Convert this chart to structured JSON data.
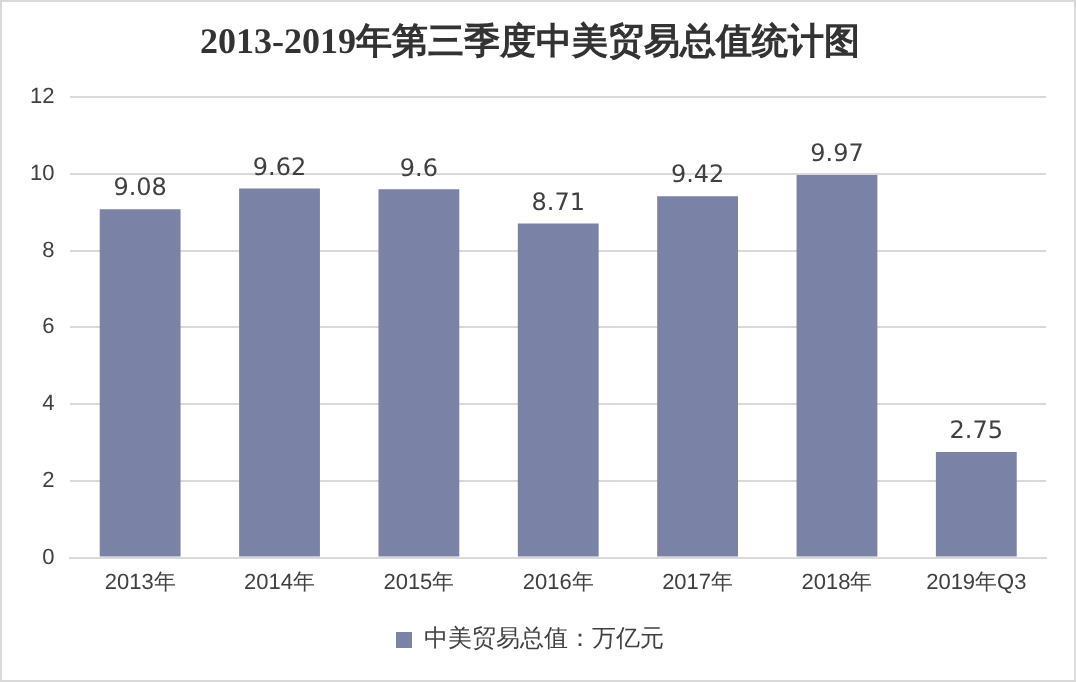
{
  "chart_data": {
    "type": "bar",
    "title": "2013-2019年第三季度中美贸易总值统计图",
    "categories": [
      "2013年",
      "2014年",
      "2015年",
      "2016年",
      "2017年",
      "2018年",
      "2019年Q3"
    ],
    "series": [
      {
        "name": "中美贸易总值：万亿元",
        "color": "#7a82a6",
        "values": [
          9.08,
          9.62,
          9.6,
          8.71,
          9.42,
          9.97,
          2.75
        ]
      }
    ],
    "ylim": [
      0,
      12
    ],
    "yticks": [
      0,
      2,
      4,
      6,
      8,
      10,
      12
    ],
    "grid": "y",
    "legend": "bottom",
    "data_labels": true
  }
}
